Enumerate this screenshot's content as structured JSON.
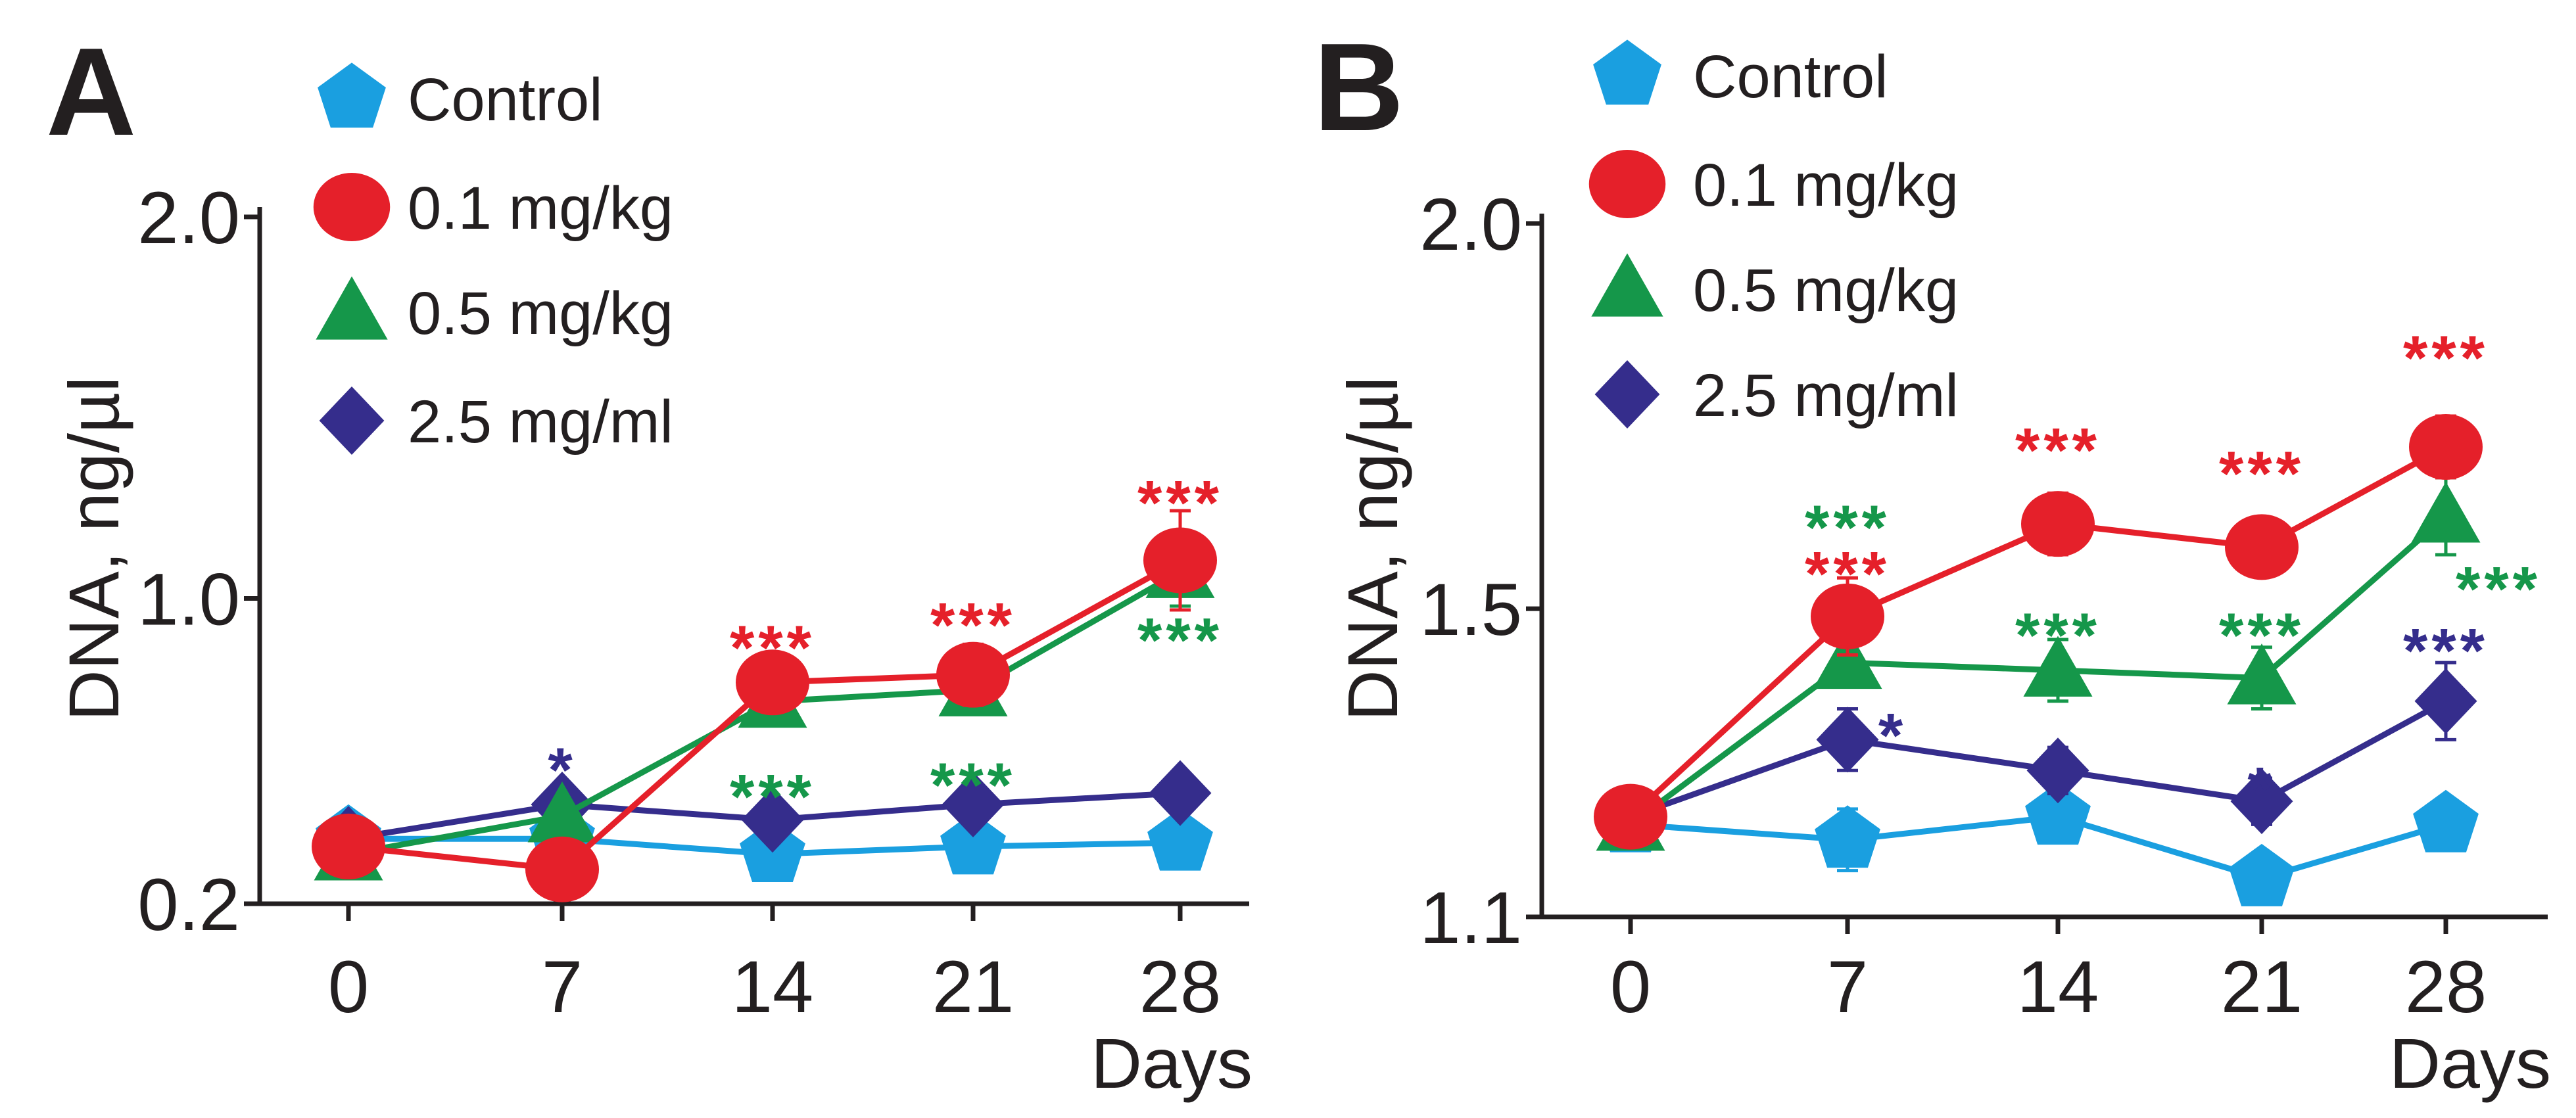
{
  "colors": {
    "control": "#1a9fe0",
    "dose01": "#e5202a",
    "dose05": "#15974a",
    "dose25": "#352d8c",
    "axis": "#231f20"
  },
  "chart_data": [
    {
      "panel": "A",
      "type": "line",
      "xlabel": "Days",
      "ylabel": "DNA, ng/µl",
      "x": [
        0,
        7,
        14,
        21,
        28
      ],
      "xticks": [
        "0",
        "7",
        "14",
        "21",
        "28"
      ],
      "yticks": [
        {
          "value": 0.2,
          "label": "0.2"
        },
        {
          "value": 1.0,
          "label": "1.0"
        },
        {
          "value": 2.0,
          "label": "2.0"
        }
      ],
      "ylim": [
        0.2,
        2.0
      ],
      "series": [
        {
          "key": "control",
          "name": "Control",
          "marker": "pentagon",
          "color": "#1a9fe0",
          "values": [
            0.37,
            0.37,
            0.33,
            0.35,
            0.36
          ],
          "errors": [
            0.03,
            0.03,
            0.04,
            0.04,
            0.04
          ]
        },
        {
          "key": "dose25",
          "name": "2.5 mg/ml",
          "marker": "diamond",
          "color": "#352d8c",
          "values": [
            0.37,
            0.46,
            0.42,
            0.46,
            0.49
          ],
          "errors": [
            0.02,
            0.04,
            0.04,
            0.05,
            0.04
          ]
        },
        {
          "key": "dose05",
          "name": "0.5 mg/kg",
          "marker": "triangle",
          "color": "#15974a",
          "values": [
            0.33,
            0.43,
            0.73,
            0.76,
            1.07
          ],
          "errors": [
            0.02,
            0.03,
            0.05,
            0.05,
            0.09
          ]
        },
        {
          "key": "dose01",
          "name": "0.1 mg/kg",
          "marker": "circle",
          "color": "#e5202a",
          "values": [
            0.35,
            0.29,
            0.78,
            0.8,
            1.1
          ],
          "errors": [
            0.02,
            0.03,
            0.05,
            0.08,
            0.13
          ]
        }
      ],
      "legend": [
        {
          "key": "control",
          "label": "Control",
          "marker": "pentagon",
          "color": "#1a9fe0"
        },
        {
          "key": "dose01",
          "label": "0.1 mg/kg",
          "marker": "circle",
          "color": "#e5202a"
        },
        {
          "key": "dose05",
          "label": "0.5 mg/kg",
          "marker": "triangle",
          "color": "#15974a"
        },
        {
          "key": "dose25",
          "label": "2.5 mg/ml",
          "marker": "diamond",
          "color": "#352d8c"
        }
      ],
      "annotations": [
        {
          "text": "*",
          "day": 7,
          "y": 0.58,
          "color": "#352d8c"
        },
        {
          "text": "***",
          "day": 14,
          "y": 0.9,
          "color": "#e5202a"
        },
        {
          "text": "***",
          "day": 14,
          "y": 0.51,
          "color": "#15974a"
        },
        {
          "text": "***",
          "day": 21,
          "y": 0.96,
          "color": "#e5202a"
        },
        {
          "text": "***",
          "day": 21,
          "y": 0.54,
          "color": "#15974a"
        },
        {
          "text": "***",
          "day": 28,
          "y": 1.28,
          "color": "#e5202a"
        },
        {
          "text": "***",
          "day": 28,
          "y": 0.92,
          "color": "#15974a"
        }
      ]
    },
    {
      "panel": "B",
      "type": "line",
      "xlabel": "Days",
      "ylabel": "DNA, ng/µl",
      "x": [
        0,
        7,
        14,
        21,
        28
      ],
      "xticks": [
        "0",
        "7",
        "14",
        "21",
        "28"
      ],
      "yticks": [
        {
          "value": 1.1,
          "label": "1.1"
        },
        {
          "value": 1.5,
          "label": "1.5"
        },
        {
          "value": 2.0,
          "label": "2.0"
        }
      ],
      "ylim": [
        1.1,
        2.0
      ],
      "series": [
        {
          "key": "control",
          "name": "Control",
          "marker": "pentagon",
          "color": "#1a9fe0",
          "values": [
            1.22,
            1.2,
            1.23,
            1.15,
            1.22
          ],
          "errors": [
            0.02,
            0.04,
            0.03,
            0.02,
            0.03
          ]
        },
        {
          "key": "dose25",
          "name": "2.5 mg/ml",
          "marker": "diamond",
          "color": "#352d8c",
          "values": [
            1.23,
            1.33,
            1.29,
            1.25,
            1.38
          ],
          "errors": [
            0.02,
            0.04,
            0.03,
            0.03,
            0.05
          ]
        },
        {
          "key": "dose05",
          "name": "0.5 mg/kg",
          "marker": "triangle",
          "color": "#15974a",
          "values": [
            1.22,
            1.43,
            1.42,
            1.41,
            1.62
          ],
          "errors": [
            0.02,
            0.03,
            0.04,
            0.04,
            0.05
          ]
        },
        {
          "key": "dose01",
          "name": "0.1 mg/kg",
          "marker": "circle",
          "color": "#e5202a",
          "values": [
            1.23,
            1.49,
            1.61,
            1.58,
            1.71
          ],
          "errors": [
            0.02,
            0.05,
            0.04,
            0.03,
            0.04
          ]
        }
      ],
      "legend": [
        {
          "key": "control",
          "label": "Control",
          "marker": "pentagon",
          "color": "#1a9fe0"
        },
        {
          "key": "dose01",
          "label": "0.1 mg/kg",
          "marker": "circle",
          "color": "#e5202a"
        },
        {
          "key": "dose05",
          "label": "0.5 mg/kg",
          "marker": "triangle",
          "color": "#15974a"
        },
        {
          "key": "dose25",
          "label": "2.5 mg/ml",
          "marker": "diamond",
          "color": "#352d8c"
        }
      ],
      "annotations": [
        {
          "text": "***",
          "day": 7,
          "y": 1.62,
          "color": "#15974a"
        },
        {
          "text": "***",
          "day": 7,
          "y": 1.56,
          "color": "#e5202a"
        },
        {
          "text": "*",
          "day": 8.5,
          "y": 1.35,
          "color": "#352d8c"
        },
        {
          "text": "***",
          "day": 14,
          "y": 1.72,
          "color": "#e5202a"
        },
        {
          "text": "***",
          "day": 14,
          "y": 1.48,
          "color": "#15974a"
        },
        {
          "text": "***",
          "day": 21,
          "y": 1.69,
          "color": "#e5202a"
        },
        {
          "text": "***",
          "day": 21,
          "y": 1.48,
          "color": "#15974a"
        },
        {
          "text": "*",
          "day": 21,
          "y": 1.28,
          "color": "#352d8c"
        },
        {
          "text": "***",
          "day": 28,
          "y": 1.84,
          "color": "#e5202a"
        },
        {
          "text": "***",
          "day": 30,
          "y": 1.54,
          "color": "#15974a"
        },
        {
          "text": "***",
          "day": 28,
          "y": 1.46,
          "color": "#352d8c"
        }
      ]
    }
  ]
}
